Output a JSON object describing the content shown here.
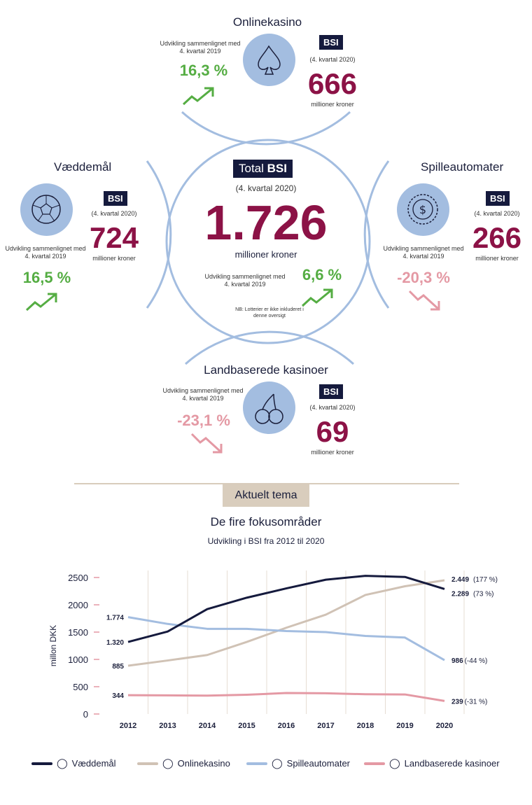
{
  "center": {
    "title_prefix": "Total",
    "title_suffix": "BSI",
    "period": "(4. kvartal 2020)",
    "value": "1.726",
    "unit": "millioner kroner",
    "dev_label": "Udvikling sammenlignet med 4. kvartal 2019",
    "dev_value": "6,6 %",
    "note": "NB: Lotterier er ikke inkluderet i denne oversigt"
  },
  "segments": {
    "online": {
      "title": "Onlinekasino",
      "bsi": "BSI",
      "period": "(4. kvartal 2020)",
      "value": "666",
      "unit": "millioner kroner",
      "dev_label": "Udvikling sammenlignet med 4. kvartal 2019",
      "dev_value": "16,3 %"
    },
    "betting": {
      "title": "Væddemål",
      "bsi": "BSI",
      "period": "(4. kvartal 2020)",
      "value": "724",
      "unit": "millioner kroner",
      "dev_label": "Udvikling sammenlignet med 4. kvartal 2019",
      "dev_value": "16,5 %"
    },
    "slots": {
      "title": "Spilleautomater",
      "bsi": "BSI",
      "period": "(4. kvartal 2020)",
      "value": "266",
      "unit": "millioner kroner",
      "dev_label": "Udvikling sammenlignet med 4. kvartal 2019",
      "dev_value": "-20,3 %"
    },
    "land": {
      "title": "Landbaserede kasinoer",
      "bsi": "BSI",
      "period": "(4. kvartal 2020)",
      "value": "69",
      "unit": "millioner kroner",
      "dev_label": "Udvikling sammenlignet med 4. kvartal 2019",
      "dev_value": "-23,1 %"
    }
  },
  "theme": {
    "label": "Aktuelt tema"
  },
  "colors": {
    "accent": "#8c1246",
    "green": "#55ad43",
    "pink": "#e499a4",
    "navy": "#151a3d",
    "lightblue": "#a3bde0"
  },
  "chart_data": {
    "type": "line",
    "title": "De fire fokusområder",
    "subtitle": "Udvikling i BSI fra 2012 til 2020",
    "ylabel": "millon DKK",
    "ylim": [
      0,
      2500
    ],
    "yticks": [
      0,
      500,
      1000,
      1500,
      2000,
      2500
    ],
    "x": [
      "2012",
      "2013",
      "2014",
      "2015",
      "2016",
      "2017",
      "2018",
      "2019",
      "2020"
    ],
    "series": [
      {
        "name": "Væddemål",
        "color": "#151a3d",
        "values": [
          1320,
          1510,
          1920,
          2130,
          2300,
          2460,
          2530,
          2510,
          2289
        ],
        "start_label": "1.320",
        "end_label": "2.289",
        "end_change": "(73 %)"
      },
      {
        "name": "Onlinekasino",
        "color": "#d0c2b5",
        "values": [
          885,
          980,
          1080,
          1320,
          1580,
          1820,
          2180,
          2340,
          2449
        ],
        "start_label": "885",
        "end_label": "2.449",
        "end_change": "(177 %)"
      },
      {
        "name": "Spilleautomater",
        "color": "#a3bde0",
        "values": [
          1774,
          1650,
          1560,
          1560,
          1520,
          1500,
          1430,
          1400,
          986
        ],
        "start_label": "1.774",
        "end_label": "986",
        "end_change": "(-44 %)"
      },
      {
        "name": "Landbaserede kasinoer",
        "color": "#e499a4",
        "values": [
          344,
          342,
          336,
          352,
          384,
          380,
          362,
          358,
          239
        ],
        "start_label": "344",
        "end_label": "239",
        "end_change": "(-31 %)"
      }
    ]
  }
}
